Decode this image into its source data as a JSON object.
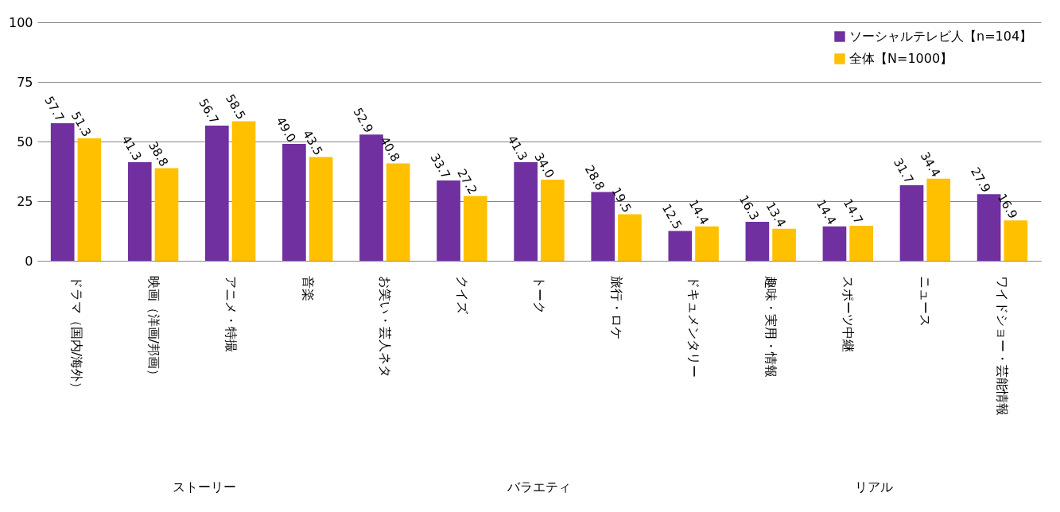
{
  "chart_data": {
    "type": "bar",
    "categories": [
      "ドラマ（国内/海外）",
      "映画（洋画/邦画）",
      "アニメ・特撮",
      "音楽",
      "お笑い・芸人ネタ",
      "クイズ",
      "トーク",
      "旅行・ロケ",
      "ドキュメンタリー",
      "趣味・実用・情報",
      "スポーツ中継",
      "ニュース",
      "ワイドショー・芸能情報"
    ],
    "series": [
      {
        "name": "ソーシャルテレビ人【n=104】",
        "color": "#7030a0",
        "values": [
          57.7,
          41.3,
          56.7,
          49.0,
          52.9,
          33.7,
          41.3,
          28.8,
          12.5,
          16.3,
          14.4,
          31.7,
          27.9
        ],
        "value_labels": [
          "57.7",
          "41.3",
          "56.7",
          "49.0",
          "52.9",
          "33.7",
          "41.3",
          "28.8",
          "12.5",
          "16.3",
          "14.4",
          "31.7",
          "27.9"
        ]
      },
      {
        "name": "全体【N=1000】",
        "color": "#ffc000",
        "values": [
          51.3,
          38.8,
          58.5,
          43.5,
          40.8,
          27.2,
          34.0,
          19.5,
          14.4,
          13.4,
          14.7,
          34.4,
          16.9
        ],
        "value_labels": [
          "51.3",
          "38.8",
          "58.5",
          "43.5",
          "40.8",
          "27.2",
          "34.0",
          "19.5",
          "14.4",
          "13.4",
          "14.7",
          "34.4",
          "16.9"
        ]
      }
    ],
    "ylim": [
      0,
      100
    ],
    "yticks": [
      0,
      25,
      50,
      75,
      100
    ],
    "grid": "y",
    "legend": "top right",
    "annotations": [
      "ストーリー",
      "バラエティ",
      "リアル"
    ]
  }
}
